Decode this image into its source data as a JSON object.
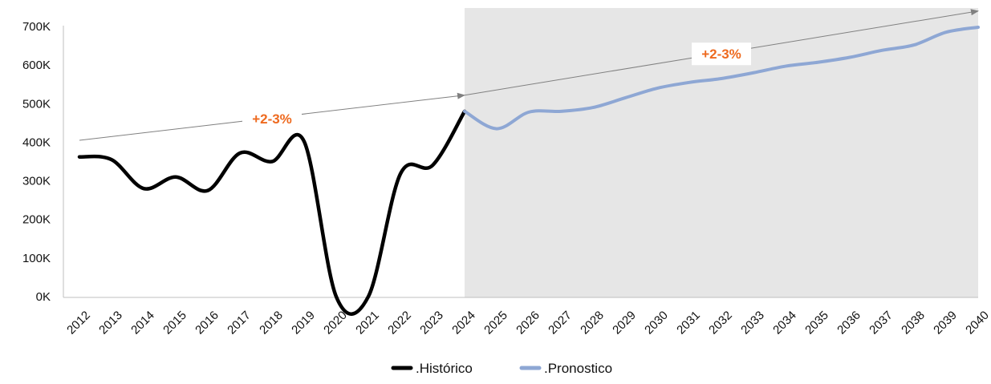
{
  "chart_data": {
    "type": "line",
    "title": "",
    "xlabel": "",
    "ylabel": "",
    "ylim": [
      0,
      700000
    ],
    "y_ticks": [
      0,
      100000,
      200000,
      300000,
      400000,
      500000,
      600000,
      700000
    ],
    "y_tick_labels": [
      "0K",
      "100K",
      "200K",
      "300K",
      "400K",
      "500K",
      "600K",
      "700K"
    ],
    "categories": [
      "2012",
      "2013",
      "2014",
      "2015",
      "2016",
      "2017",
      "2018",
      "2019",
      "2020",
      "2021",
      "2022",
      "2023",
      "2024",
      "2025",
      "2026",
      "2027",
      "2028",
      "2029",
      "2030",
      "2031",
      "2032",
      "2033",
      "2034",
      "2035",
      "2036",
      "2037",
      "2038",
      "2039",
      "2040"
    ],
    "forecast_region": {
      "from": "2024",
      "to": "2040",
      "color": "#e6e6e6"
    },
    "grid": false,
    "legend_position": "bottom-center",
    "series": [
      {
        "name": ".Histórico",
        "color": "#000000",
        "x": [
          "2012",
          "2013",
          "2014",
          "2015",
          "2016",
          "2017",
          "2018",
          "2019",
          "2020",
          "2021",
          "2022",
          "2023",
          "2024"
        ],
        "values": [
          362000,
          355000,
          280000,
          310000,
          275000,
          372000,
          350000,
          402000,
          0,
          0,
          318000,
          340000,
          480000
        ]
      },
      {
        "name": ".Pronostico",
        "color": "#8ea7d4",
        "x": [
          "2024",
          "2025",
          "2026",
          "2027",
          "2028",
          "2029",
          "2030",
          "2031",
          "2032",
          "2033",
          "2034",
          "2035",
          "2036",
          "2037",
          "2038",
          "2039",
          "2040"
        ],
        "values": [
          480000,
          435000,
          478000,
          480000,
          490000,
          515000,
          540000,
          555000,
          565000,
          580000,
          597000,
          607000,
          620000,
          638000,
          652000,
          685000,
          698000
        ]
      }
    ],
    "annotations": [
      {
        "label": "+2-3%",
        "arrow_from": [
          "2012",
          405000
        ],
        "arrow_to": [
          "2024",
          522000
        ]
      },
      {
        "label": "+2-3%",
        "arrow_from": [
          "2024",
          522000
        ],
        "arrow_to": [
          "2040",
          740000
        ]
      }
    ]
  }
}
